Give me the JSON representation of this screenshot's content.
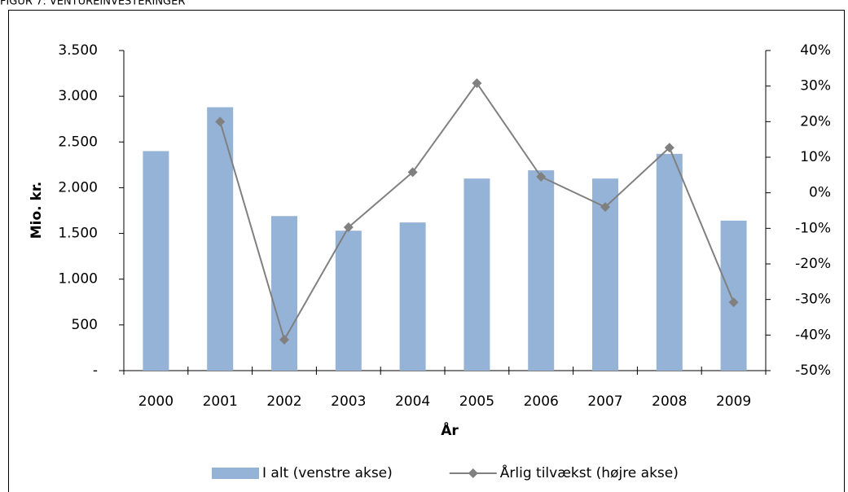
{
  "chart_data": {
    "type": "bar-line",
    "title": "FIGUR 7: VENTUREINVESTERINGER",
    "x_label": "År",
    "y_label": "Mio. kr.",
    "categories": [
      "2000",
      "2001",
      "2002",
      "2003",
      "2004",
      "2005",
      "2006",
      "2007",
      "2008",
      "2009"
    ],
    "series": [
      {
        "name": "I alt (venstre akse)",
        "type": "bar",
        "color": "#95b3d7",
        "values": [
          2400,
          2880,
          1690,
          1530,
          1620,
          2100,
          2190,
          2100,
          2370,
          1640
        ]
      },
      {
        "name": "Årlig tilvækst (højre akse)",
        "type": "line",
        "axis": "y2",
        "color": "#808080",
        "values": [
          null,
          20,
          -41.3,
          -9.7,
          5.8,
          30.8,
          4.5,
          -4.0,
          12.7,
          -30.8
        ]
      }
    ],
    "ylim": [
      0,
      3500
    ],
    "yticks": [
      {
        "value": 0,
        "label": "-"
      },
      500,
      {
        "value": 1000,
        "label": "1.000"
      },
      {
        "value": 1500,
        "label": "1.500"
      },
      {
        "value": 2000,
        "label": "2.000"
      },
      {
        "value": 2500,
        "label": "2.500"
      },
      {
        "value": 3000,
        "label": "3.000"
      },
      {
        "value": 3500,
        "label": "3.500"
      }
    ],
    "y2lim": [
      -50,
      40
    ],
    "y2ticks": [
      {
        "value": -50,
        "label": "-50%"
      },
      {
        "value": -40,
        "label": "-40%"
      },
      {
        "value": -30,
        "label": "-30%"
      },
      {
        "value": -20,
        "label": "-20%"
      },
      {
        "value": -10,
        "label": "-10%"
      },
      {
        "value": 0,
        "label": "0%"
      },
      {
        "value": 10,
        "label": "10%"
      },
      {
        "value": 20,
        "label": "20%"
      },
      {
        "value": 30,
        "label": "30%"
      },
      {
        "value": 40,
        "label": "40%"
      }
    ],
    "legend": "bottom"
  }
}
